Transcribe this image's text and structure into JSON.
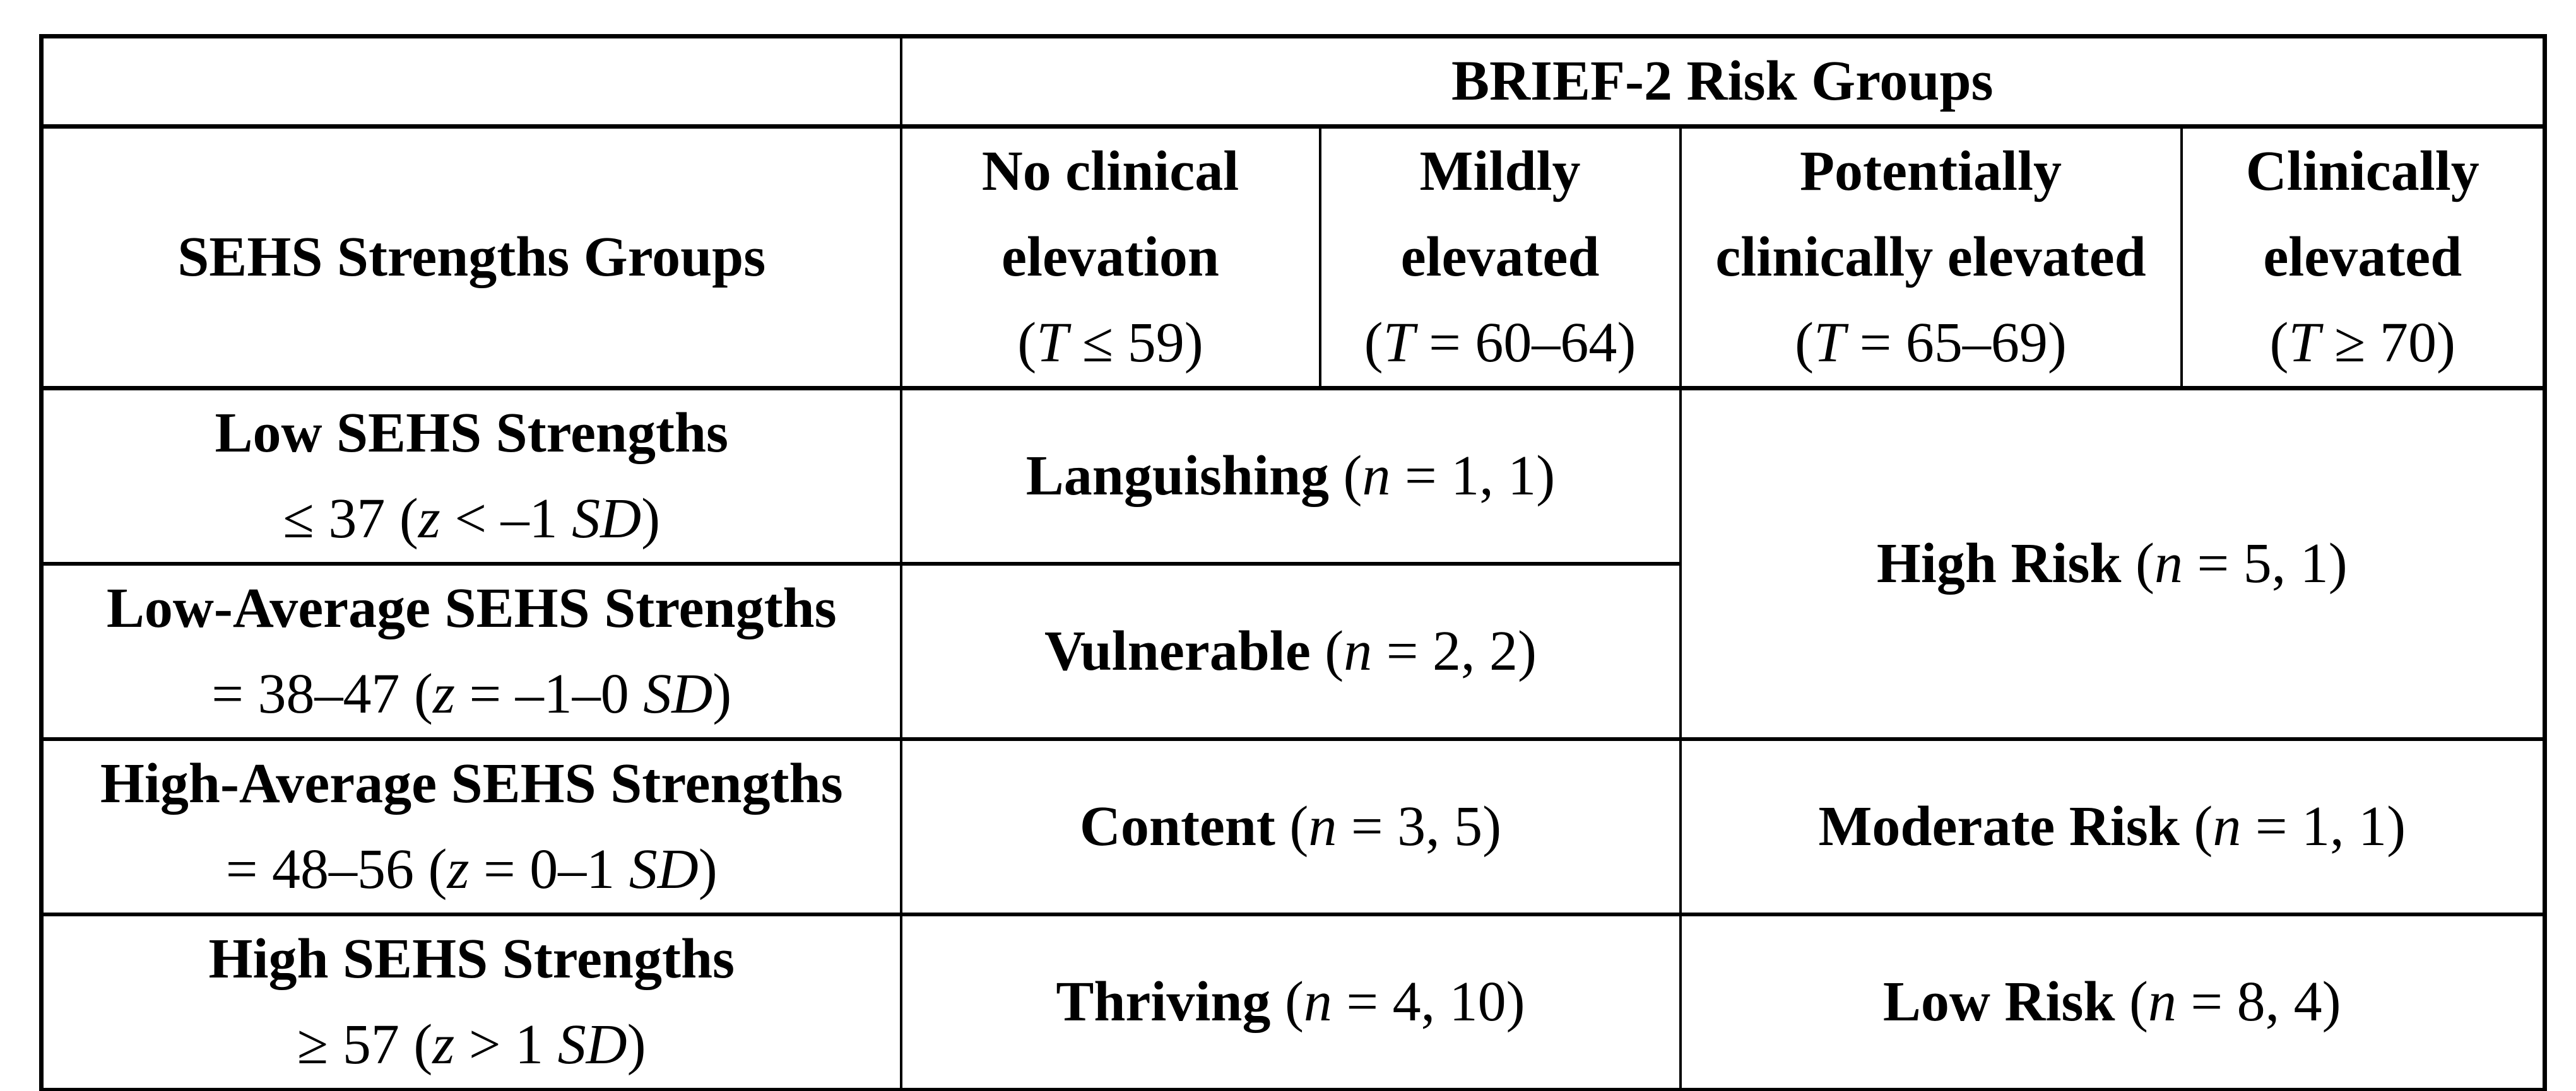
{
  "table": {
    "title_cell": "BRIEF-2 Risk Groups",
    "colors": {
      "text": "#000000",
      "border": "#000000",
      "background": "#ffffff"
    },
    "cells": {
      "brief2": [
        [
          {
            "t": "BRIEF-2 Risk Groups",
            "b": true
          }
        ]
      ],
      "sehs_groups": [
        [
          {
            "t": "SEHS Strengths Groups",
            "b": true
          }
        ]
      ],
      "h_no_clinical": [
        [
          {
            "t": "No clinical",
            "b": true
          }
        ],
        [
          {
            "t": "elevation",
            "b": true
          }
        ],
        [
          {
            "t": "("
          },
          {
            "t": "T",
            "i": true
          },
          {
            "t": " ≤ 59)"
          }
        ]
      ],
      "h_mildly": [
        [
          {
            "t": "Mildly",
            "b": true
          }
        ],
        [
          {
            "t": "elevated",
            "b": true
          }
        ],
        [
          {
            "t": "("
          },
          {
            "t": "T",
            "i": true
          },
          {
            "t": " = 60–64)"
          }
        ]
      ],
      "h_potentially": [
        [
          {
            "t": "Potentially",
            "b": true
          }
        ],
        [
          {
            "t": "clinically elevated",
            "b": true
          }
        ],
        [
          {
            "t": "("
          },
          {
            "t": "T",
            "i": true
          },
          {
            "t": " = 65–69)"
          }
        ]
      ],
      "h_clinically": [
        [
          {
            "t": "Clinically",
            "b": true
          }
        ],
        [
          {
            "t": "elevated",
            "b": true
          }
        ],
        [
          {
            "t": "("
          },
          {
            "t": "T",
            "i": true
          },
          {
            "t": " ≥ 70)"
          }
        ]
      ],
      "r1_group": [
        [
          {
            "t": "Low SEHS Strengths",
            "b": true
          }
        ],
        [
          {
            "t": "≤ 37 ("
          },
          {
            "t": "z",
            "i": true
          },
          {
            "t": " < –1 "
          },
          {
            "t": "SD",
            "i": true
          },
          {
            "t": ")"
          }
        ]
      ],
      "r1_outcome": [
        [
          {
            "t": "Languishing ",
            "b": true
          },
          {
            "t": "("
          },
          {
            "t": "n",
            "i": true
          },
          {
            "t": " = 1, 1)"
          }
        ]
      ],
      "high_risk": [
        [
          {
            "t": "High Risk ",
            "b": true
          },
          {
            "t": "("
          },
          {
            "t": "n",
            "i": true
          },
          {
            "t": " = 5, 1)"
          }
        ]
      ],
      "r2_group": [
        [
          {
            "t": "Low-Average SEHS Strengths",
            "b": true
          }
        ],
        [
          {
            "t": "= 38–47 ("
          },
          {
            "t": "z",
            "i": true
          },
          {
            "t": " = –1–0 "
          },
          {
            "t": "SD",
            "i": true
          },
          {
            "t": ")"
          }
        ]
      ],
      "r2_outcome": [
        [
          {
            "t": "Vulnerable ",
            "b": true
          },
          {
            "t": "("
          },
          {
            "t": "n",
            "i": true
          },
          {
            "t": " = 2, 2)"
          }
        ]
      ],
      "r3_group": [
        [
          {
            "t": "High-Average SEHS Strengths",
            "b": true
          }
        ],
        [
          {
            "t": "= 48–56 ("
          },
          {
            "t": "z",
            "i": true
          },
          {
            "t": " = 0–1 "
          },
          {
            "t": "SD",
            "i": true
          },
          {
            "t": ")"
          }
        ]
      ],
      "r3_outcome": [
        [
          {
            "t": "Content ",
            "b": true
          },
          {
            "t": "("
          },
          {
            "t": "n",
            "i": true
          },
          {
            "t": " = 3, 5)"
          }
        ]
      ],
      "moderate_risk": [
        [
          {
            "t": "Moderate Risk ",
            "b": true
          },
          {
            "t": "("
          },
          {
            "t": "n",
            "i": true
          },
          {
            "t": " = 1, 1)"
          }
        ]
      ],
      "r4_group": [
        [
          {
            "t": "High SEHS Strengths",
            "b": true
          }
        ],
        [
          {
            "t": "≥ 57 ("
          },
          {
            "t": "z",
            "i": true
          },
          {
            "t": " > 1 "
          },
          {
            "t": "SD",
            "i": true
          },
          {
            "t": ")"
          }
        ]
      ],
      "r4_outcome": [
        [
          {
            "t": "Thriving ",
            "b": true
          },
          {
            "t": "("
          },
          {
            "t": "n",
            "i": true
          },
          {
            "t": " = 4, 10)"
          }
        ]
      ],
      "low_risk": [
        [
          {
            "t": "Low Risk ",
            "b": true
          },
          {
            "t": "("
          },
          {
            "t": "n",
            "i": true
          },
          {
            "t": " = 8, 4)"
          }
        ]
      ]
    }
  }
}
